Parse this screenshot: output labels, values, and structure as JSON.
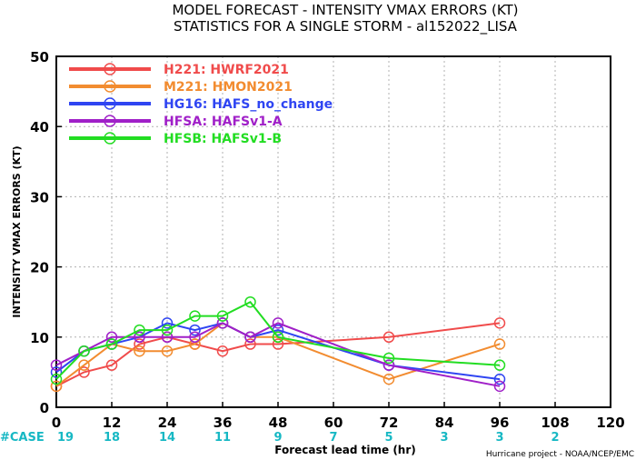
{
  "chart_data": {
    "type": "line",
    "title": "MODEL FORECAST - INTENSITY VMAX ERRORS (KT)",
    "subtitle": "STATISTICS FOR A SINGLE STORM - al152022_LISA",
    "xlabel": "Forecast lead time (hr)",
    "ylabel": "INTENSITY VMAX ERRORS (KT)",
    "xlim": [
      0,
      120
    ],
    "ylim": [
      0,
      50
    ],
    "xticks": [
      "0",
      "12",
      "24",
      "36",
      "48",
      "60",
      "72",
      "84",
      "96",
      "108",
      "120"
    ],
    "yticks": [
      "0",
      "10",
      "20",
      "30",
      "40",
      "50"
    ],
    "grid": true,
    "legend_position": "top-left",
    "series": [
      {
        "name": "H221: HWRF2021",
        "color": "#f04b4b",
        "x": [
          0,
          6,
          12,
          18,
          24,
          30,
          36,
          42,
          48,
          72,
          96
        ],
        "y": [
          3,
          5,
          6,
          9,
          10,
          9,
          8,
          9,
          9,
          10,
          12
        ]
      },
      {
        "name": "M221: HMON2021",
        "color": "#f28c30",
        "x": [
          0,
          6,
          12,
          18,
          24,
          30,
          36,
          42,
          48,
          72,
          96
        ],
        "y": [
          3,
          6,
          9,
          8,
          8,
          9,
          12,
          10,
          10,
          4,
          9
        ]
      },
      {
        "name": "HG16: HAFS_no_change",
        "color": "#2f45f2",
        "x": [
          0,
          6,
          12,
          18,
          24,
          30,
          36,
          42,
          48,
          72,
          96
        ],
        "y": [
          5,
          8,
          9,
          10,
          12,
          11,
          12,
          10,
          11,
          6,
          4
        ]
      },
      {
        "name": "HFSA: HAFSv1-A",
        "color": "#a020c8",
        "x": [
          0,
          6,
          12,
          18,
          24,
          30,
          36,
          42,
          48,
          72,
          96
        ],
        "y": [
          6,
          8,
          10,
          10,
          10,
          10,
          12,
          10,
          12,
          6,
          3
        ]
      },
      {
        "name": "HFSB: HAFSv1-B",
        "color": "#22dd22",
        "x": [
          0,
          6,
          12,
          18,
          24,
          30,
          36,
          42,
          48,
          72,
          96
        ],
        "y": [
          4,
          8,
          9,
          11,
          11,
          13,
          13,
          15,
          10,
          7,
          6
        ]
      }
    ],
    "case_label": "#CASE",
    "case_counts": [
      {
        "x": 0,
        "count": "19"
      },
      {
        "x": 12,
        "count": "18"
      },
      {
        "x": 24,
        "count": "14"
      },
      {
        "x": 36,
        "count": "11"
      },
      {
        "x": 48,
        "count": "9"
      },
      {
        "x": 60,
        "count": "7"
      },
      {
        "x": 72,
        "count": "5"
      },
      {
        "x": 84,
        "count": "3"
      },
      {
        "x": 96,
        "count": "3"
      },
      {
        "x": 108,
        "count": "2"
      }
    ],
    "credit": "Hurricane project - NOAA/NCEP/EMC"
  }
}
